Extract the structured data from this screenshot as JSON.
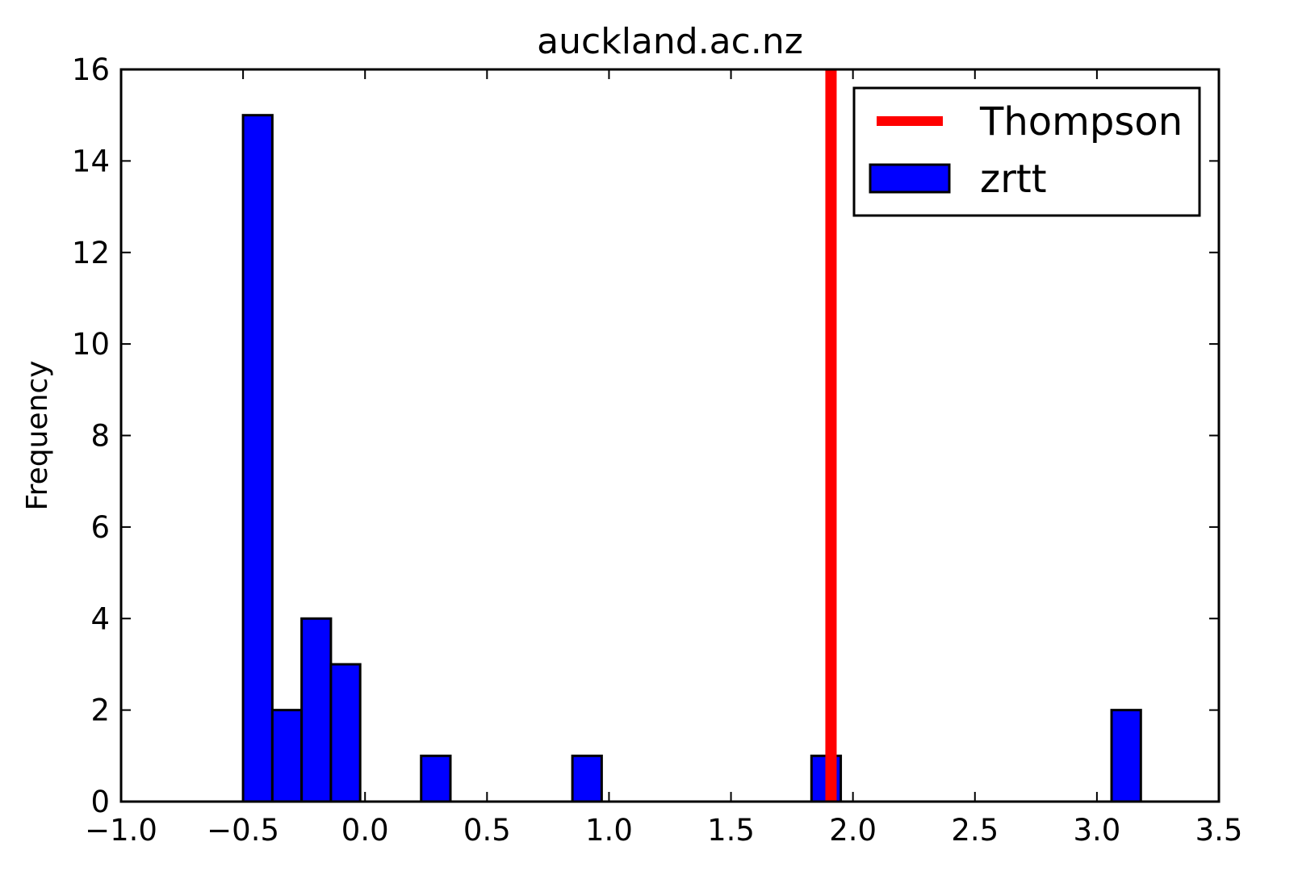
{
  "chart_data": {
    "type": "bar",
    "title": "auckland.ac.nz",
    "xlabel": "",
    "ylabel": "Frequency",
    "xlim": [
      -1.0,
      3.5
    ],
    "ylim": [
      0,
      16
    ],
    "x_ticks": [
      -1.0,
      -0.5,
      0.0,
      0.5,
      1.0,
      1.5,
      2.0,
      2.5,
      3.0,
      3.5
    ],
    "x_tick_labels": [
      "−1.0",
      "−0.5",
      "0.0",
      "0.5",
      "1.0",
      "1.5",
      "2.0",
      "2.5",
      "3.0",
      "3.5"
    ],
    "y_ticks": [
      0,
      2,
      4,
      6,
      8,
      10,
      12,
      14,
      16
    ],
    "y_tick_labels": [
      "0",
      "2",
      "4",
      "6",
      "8",
      "10",
      "12",
      "14",
      "16"
    ],
    "grid": false,
    "legend_position": "top-right",
    "series": [
      {
        "name": "zrtt",
        "kind": "histogram",
        "color": "#0000ff",
        "bins": [
          {
            "x0": -0.5,
            "x1": -0.38,
            "count": 15
          },
          {
            "x0": -0.38,
            "x1": -0.26,
            "count": 2
          },
          {
            "x0": -0.26,
            "x1": -0.14,
            "count": 4
          },
          {
            "x0": -0.14,
            "x1": -0.02,
            "count": 3
          },
          {
            "x0": 0.23,
            "x1": 0.35,
            "count": 1
          },
          {
            "x0": 0.85,
            "x1": 0.97,
            "count": 1
          },
          {
            "x0": 1.83,
            "x1": 1.95,
            "count": 1
          },
          {
            "x0": 3.06,
            "x1": 3.18,
            "count": 2
          }
        ]
      },
      {
        "name": "Thompson",
        "kind": "vline",
        "color": "#ff0000",
        "x": 1.91
      }
    ]
  }
}
